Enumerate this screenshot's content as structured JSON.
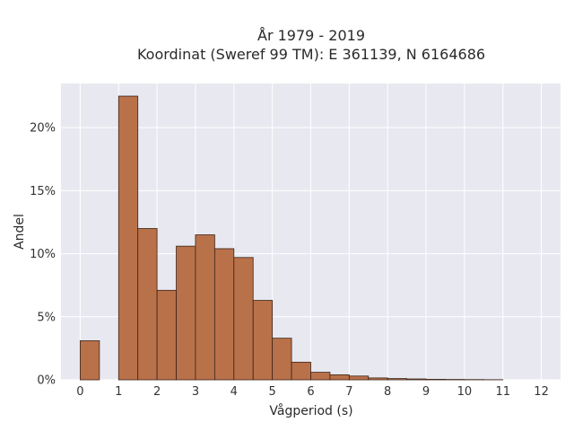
{
  "chart_data": {
    "type": "bar",
    "title": [
      "År 1979 - 2019",
      "Koordinat (Sweref 99 TM): E 361139, N 6164686"
    ],
    "xlabel": "Vågperiod (s)",
    "ylabel": "Andel",
    "xlim": [
      -0.5,
      12.5
    ],
    "ylim": [
      0,
      0.235
    ],
    "xticks": [
      0,
      1,
      2,
      3,
      4,
      5,
      6,
      7,
      8,
      9,
      10,
      11,
      12
    ],
    "yticks": [
      0,
      0.05,
      0.1,
      0.15,
      0.2
    ],
    "ytick_labels": [
      "0%",
      "5%",
      "10%",
      "15%",
      "20%"
    ],
    "bin_width": 0.5,
    "bars": [
      {
        "x0": 0.0,
        "value": 0.031
      },
      {
        "x0": 1.0,
        "value": 0.225
      },
      {
        "x0": 1.5,
        "value": 0.12
      },
      {
        "x0": 2.0,
        "value": 0.071
      },
      {
        "x0": 2.5,
        "value": 0.106
      },
      {
        "x0": 3.0,
        "value": 0.115
      },
      {
        "x0": 3.5,
        "value": 0.104
      },
      {
        "x0": 4.0,
        "value": 0.097
      },
      {
        "x0": 4.5,
        "value": 0.063
      },
      {
        "x0": 5.0,
        "value": 0.033
      },
      {
        "x0": 5.5,
        "value": 0.014
      },
      {
        "x0": 6.0,
        "value": 0.006
      },
      {
        "x0": 6.5,
        "value": 0.004
      },
      {
        "x0": 7.0,
        "value": 0.003
      },
      {
        "x0": 7.5,
        "value": 0.0015
      },
      {
        "x0": 8.0,
        "value": 0.001
      },
      {
        "x0": 8.5,
        "value": 0.0007
      },
      {
        "x0": 9.0,
        "value": 0.0004
      },
      {
        "x0": 9.5,
        "value": 0.0003
      },
      {
        "x0": 10.0,
        "value": 0.0002
      },
      {
        "x0": 10.5,
        "value": 0.0001
      }
    ],
    "grid": true,
    "colors": {
      "bar_fill": "#b9714a",
      "bar_edge": "#3a2418",
      "plot_background": "#e8e8f0",
      "grid": "#ffffff"
    }
  }
}
